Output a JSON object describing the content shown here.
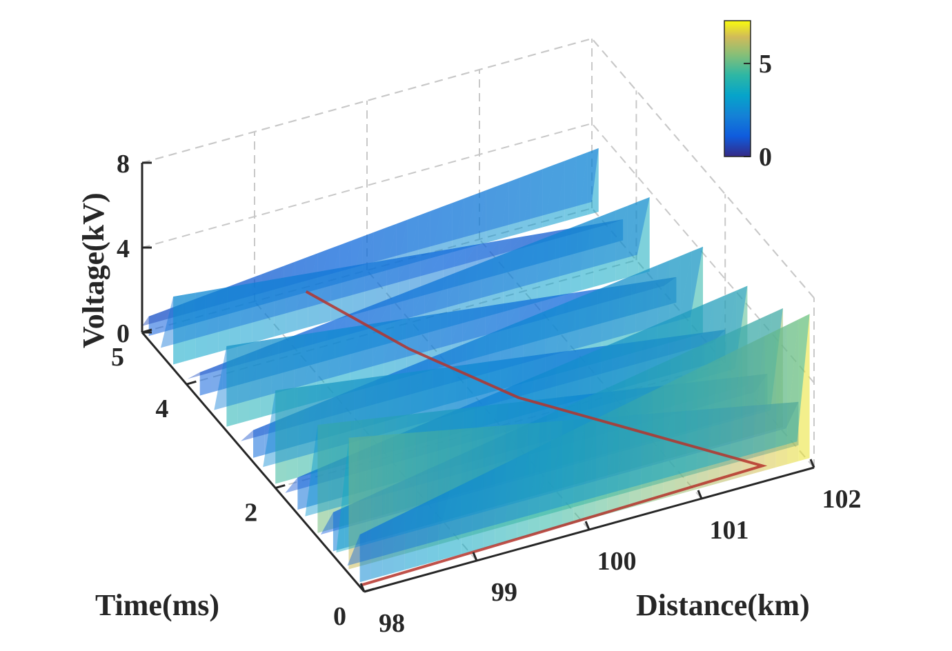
{
  "chart_data": {
    "type": "surface3d",
    "title": "",
    "xlabel": "Distance(km)",
    "ylabel": "Time(ms)",
    "zlabel": "Voltage(kV)",
    "xlim": [
      98,
      102
    ],
    "ylim": [
      0,
      5
    ],
    "zlim": [
      0,
      8
    ],
    "xticks": [
      "98",
      "99",
      "100",
      "101",
      "102"
    ],
    "yticks": [
      "0",
      "2",
      "4",
      "5"
    ],
    "zticks": [
      "0",
      "4",
      "8"
    ],
    "colorbar": {
      "ticks": [
        "0",
        "5"
      ],
      "range": [
        0,
        7.3
      ],
      "colormap": "parula"
    },
    "grid": true,
    "wavefronts": [
      {
        "t": 0.1,
        "peak": 7.0
      },
      {
        "t": 0.35,
        "peak": 6.4
      },
      {
        "t": 0.7,
        "peak": 5.8
      },
      {
        "t": 1.05,
        "peak": 5.3
      },
      {
        "t": 1.5,
        "peak": 4.9
      },
      {
        "t": 2.0,
        "peak": 4.6
      },
      {
        "t": 2.5,
        "peak": 4.3
      },
      {
        "t": 3.1,
        "peak": 4.0
      },
      {
        "t": 3.7,
        "peak": 3.7
      },
      {
        "t": 4.3,
        "peak": 3.4
      },
      {
        "t": 4.85,
        "peak": 3.2
      }
    ],
    "fault_trace": [
      {
        "x": 98.0,
        "t": 0.05,
        "v": 0.2
      },
      {
        "x": 99.5,
        "t": 0.1,
        "v": 0.2
      },
      {
        "x": 101.6,
        "t": 0.15,
        "v": 0.3
      },
      {
        "x": 100.2,
        "t": 2.1,
        "v": 0.8
      },
      {
        "x": 99.7,
        "t": 3.3,
        "v": 0.9
      },
      {
        "x": 99.3,
        "t": 4.6,
        "v": 1.0
      }
    ]
  }
}
